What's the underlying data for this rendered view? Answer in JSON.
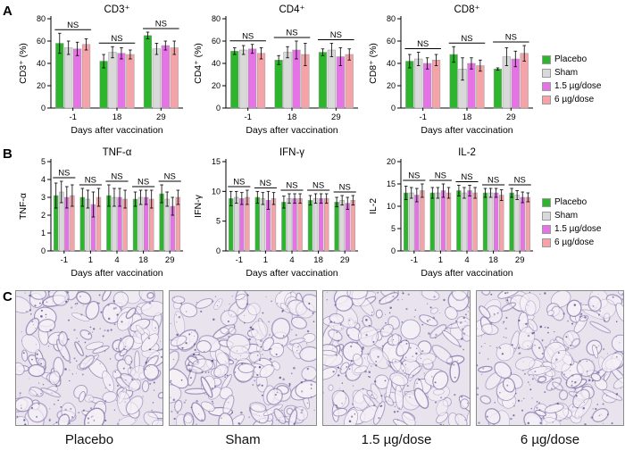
{
  "panels": {
    "A": {
      "letter": "A"
    },
    "B": {
      "letter": "B"
    },
    "C": {
      "letter": "C"
    }
  },
  "legend": {
    "items": [
      {
        "label": "Placebo",
        "color": "#2db52d"
      },
      {
        "label": "Sham",
        "color": "#d9d9d9"
      },
      {
        "label": "1.5 µg/dose",
        "color": "#e573e5"
      },
      {
        "label": "6 µg/dose",
        "color": "#f4a3a8"
      }
    ]
  },
  "chart_data": [
    {
      "type": "bar",
      "title": "CD3⁺",
      "ylabel": "CD3⁺ (%)",
      "xlabel": "Days after vaccination",
      "categories": [
        "-1",
        "18",
        "29"
      ],
      "ylim": [
        0,
        80
      ],
      "yticks": [
        0,
        20,
        40,
        60,
        80
      ],
      "annotations": [
        "NS",
        "NS",
        "NS"
      ],
      "series": [
        {
          "name": "Placebo",
          "values": [
            58,
            42,
            65
          ],
          "errors": [
            9,
            6,
            3
          ]
        },
        {
          "name": "Sham",
          "values": [
            54,
            50,
            53
          ],
          "errors": [
            6,
            5,
            5
          ]
        },
        {
          "name": "1.5 µg/dose",
          "values": [
            53,
            49,
            56
          ],
          "errors": [
            6,
            5,
            4
          ]
        },
        {
          "name": "6 µg/dose",
          "values": [
            57,
            48,
            54
          ],
          "errors": [
            5,
            4,
            6
          ]
        }
      ]
    },
    {
      "type": "bar",
      "title": "CD4⁺",
      "ylabel": "CD4⁺ (%)",
      "xlabel": "Days after vaccination",
      "categories": [
        "-1",
        "18",
        "29"
      ],
      "ylim": [
        0,
        80
      ],
      "yticks": [
        0,
        20,
        40,
        60,
        80
      ],
      "annotations": [
        "NS",
        "NS",
        "NS"
      ],
      "series": [
        {
          "name": "Placebo",
          "values": [
            51,
            43,
            50
          ],
          "errors": [
            3,
            4,
            3
          ]
        },
        {
          "name": "Sham",
          "values": [
            52,
            50,
            52
          ],
          "errors": [
            4,
            5,
            6
          ]
        },
        {
          "name": "1.5 µg/dose",
          "values": [
            53,
            52,
            46
          ],
          "errors": [
            4,
            8,
            8
          ]
        },
        {
          "name": "6 µg/dose",
          "values": [
            49,
            48,
            48
          ],
          "errors": [
            5,
            10,
            5
          ]
        }
      ]
    },
    {
      "type": "bar",
      "title": "CD8⁺",
      "ylabel": "CD8⁺ (%)",
      "xlabel": "Days after vaccination",
      "categories": [
        "-1",
        "18",
        "29"
      ],
      "ylim": [
        0,
        80
      ],
      "yticks": [
        0,
        20,
        40,
        60,
        80
      ],
      "annotations": [
        "NS",
        "NS",
        "NS"
      ],
      "series": [
        {
          "name": "Placebo",
          "values": [
            42,
            48,
            35
          ],
          "errors": [
            6,
            7,
            1
          ]
        },
        {
          "name": "Sham",
          "values": [
            44,
            35,
            46
          ],
          "errors": [
            6,
            10,
            8
          ]
        },
        {
          "name": "1.5 µg/dose",
          "values": [
            40,
            40,
            44
          ],
          "errors": [
            5,
            5,
            7
          ]
        },
        {
          "name": "6 µg/dose",
          "values": [
            43,
            38,
            49
          ],
          "errors": [
            5,
            5,
            7
          ]
        }
      ]
    },
    {
      "type": "bar",
      "title": "TNF-α",
      "ylabel": "TNF-α",
      "xlabel": "Days after vaccination",
      "categories": [
        "-1",
        "1",
        "4",
        "18",
        "29"
      ],
      "ylim": [
        0,
        5
      ],
      "yticks": [
        0,
        1,
        2,
        3,
        4,
        5
      ],
      "annotations": [
        "NS",
        "NS",
        "NS",
        "NS",
        "NS"
      ],
      "series": [
        {
          "name": "Placebo",
          "values": [
            3.1,
            3.0,
            3.1,
            2.9,
            3.2
          ],
          "errors": [
            0.7,
            0.5,
            0.6,
            0.4,
            0.5
          ]
        },
        {
          "name": "Sham",
          "values": [
            3.3,
            2.9,
            3.0,
            3.0,
            2.9
          ],
          "errors": [
            0.6,
            0.5,
            0.5,
            0.4,
            0.4
          ]
        },
        {
          "name": "1.5 µg/dose",
          "values": [
            3.0,
            2.6,
            3.0,
            3.0,
            2.5
          ],
          "errors": [
            0.6,
            0.7,
            0.5,
            0.4,
            0.5
          ]
        },
        {
          "name": "6 µg/dose",
          "values": [
            3.1,
            3.0,
            2.9,
            2.9,
            3.0
          ],
          "errors": [
            0.6,
            0.5,
            0.5,
            0.5,
            0.4
          ]
        }
      ]
    },
    {
      "type": "bar",
      "title": "IFN-γ",
      "ylabel": "IFN-γ",
      "xlabel": "Days after vaccination",
      "categories": [
        "-1",
        "1",
        "4",
        "18",
        "29"
      ],
      "ylim": [
        0,
        15
      ],
      "yticks": [
        0,
        5,
        10,
        15
      ],
      "annotations": [
        "NS",
        "NS",
        "NS",
        "NS",
        "NS"
      ],
      "series": [
        {
          "name": "Placebo",
          "values": [
            8.8,
            9.0,
            8.2,
            8.5,
            8.2
          ],
          "errors": [
            1.2,
            1.0,
            1.0,
            0.8,
            0.8
          ]
        },
        {
          "name": "Sham",
          "values": [
            9.0,
            8.8,
            8.8,
            8.8,
            8.5
          ],
          "errors": [
            1.0,
            1.0,
            0.8,
            0.8,
            0.8
          ]
        },
        {
          "name": "1.5 µg/dose",
          "values": [
            8.8,
            8.5,
            8.8,
            8.8,
            8.0
          ],
          "errors": [
            1.0,
            1.5,
            0.8,
            0.8,
            1.0
          ]
        },
        {
          "name": "6 µg/dose",
          "values": [
            9.0,
            8.8,
            8.8,
            8.8,
            8.5
          ],
          "errors": [
            1.2,
            1.0,
            0.8,
            0.8,
            0.8
          ]
        }
      ]
    },
    {
      "type": "bar",
      "title": "IL-2",
      "ylabel": "IL-2",
      "xlabel": "Days after vaccination",
      "categories": [
        "-1",
        "1",
        "4",
        "18",
        "29"
      ],
      "ylim": [
        0,
        20
      ],
      "yticks": [
        0,
        5,
        10,
        15,
        20
      ],
      "annotations": [
        "NS",
        "NS",
        "NS",
        "NS",
        "NS"
      ],
      "series": [
        {
          "name": "Placebo",
          "values": [
            13.0,
            13.0,
            13.5,
            13.0,
            13.0
          ],
          "errors": [
            1.5,
            1.2,
            1.2,
            1.0,
            1.0
          ]
        },
        {
          "name": "Sham",
          "values": [
            13.0,
            13.0,
            13.0,
            13.0,
            12.5
          ],
          "errors": [
            1.2,
            1.2,
            1.2,
            1.0,
            1.0
          ]
        },
        {
          "name": "1.5 µg/dose",
          "values": [
            12.5,
            13.5,
            13.5,
            13.0,
            12.0
          ],
          "errors": [
            1.5,
            1.5,
            1.2,
            1.0,
            1.2
          ]
        },
        {
          "name": "6 µg/dose",
          "values": [
            13.5,
            13.0,
            13.0,
            12.5,
            12.0
          ],
          "errors": [
            1.5,
            1.2,
            1.2,
            1.2,
            1.0
          ]
        }
      ]
    }
  ],
  "micrographs": {
    "captions": [
      "Placebo",
      "Sham",
      "1.5 µg/dose",
      "6 µg/dose"
    ]
  }
}
